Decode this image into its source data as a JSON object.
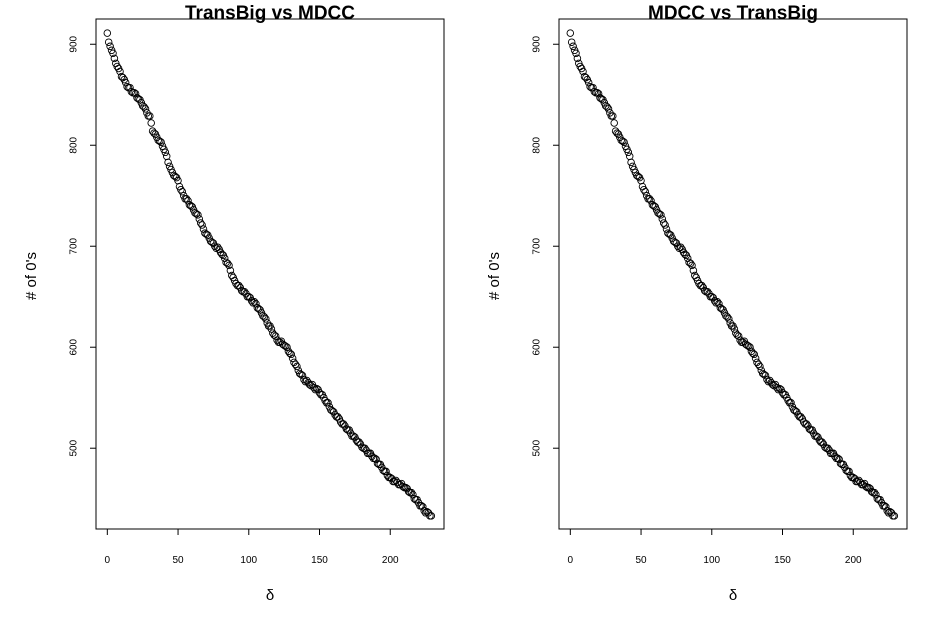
{
  "chart_data": [
    {
      "type": "scatter",
      "title": "TransBig vs MDCC",
      "xlabel": "δ",
      "ylabel": "# of 0's",
      "xlim": [
        -8,
        238
      ],
      "ylim": [
        420,
        925
      ],
      "xticks": [
        0,
        50,
        100,
        150,
        200
      ],
      "yticks": [
        500,
        600,
        700,
        800,
        900
      ],
      "grid": false,
      "marker": "open-circle",
      "anchors": [
        [
          0,
          911
        ],
        [
          1,
          901
        ],
        [
          3,
          895
        ],
        [
          5,
          885
        ],
        [
          8,
          875
        ],
        [
          12,
          864
        ],
        [
          15,
          857
        ],
        [
          20,
          850
        ],
        [
          25,
          840
        ],
        [
          30,
          828
        ],
        [
          32,
          815
        ],
        [
          35,
          808
        ],
        [
          40,
          797
        ],
        [
          45,
          775
        ],
        [
          50,
          765
        ],
        [
          52,
          755
        ],
        [
          55,
          748
        ],
        [
          60,
          738
        ],
        [
          65,
          728
        ],
        [
          68,
          716
        ],
        [
          75,
          702
        ],
        [
          80,
          695
        ],
        [
          85,
          683
        ],
        [
          90,
          665
        ],
        [
          95,
          657
        ],
        [
          100,
          650
        ],
        [
          105,
          642
        ],
        [
          110,
          632
        ],
        [
          115,
          620
        ],
        [
          120,
          607
        ],
        [
          125,
          603
        ],
        [
          130,
          592
        ],
        [
          135,
          577
        ],
        [
          140,
          567
        ],
        [
          150,
          556
        ],
        [
          160,
          535
        ],
        [
          170,
          518
        ],
        [
          180,
          502
        ],
        [
          190,
          488
        ],
        [
          200,
          470
        ],
        [
          210,
          462
        ],
        [
          215,
          455
        ],
        [
          220,
          446
        ],
        [
          225,
          437
        ],
        [
          229,
          433
        ]
      ]
    },
    {
      "type": "scatter",
      "title": "MDCC vs TransBig",
      "xlabel": "δ",
      "ylabel": "# of 0's",
      "xlim": [
        -8,
        238
      ],
      "ylim": [
        420,
        925
      ],
      "xticks": [
        0,
        50,
        100,
        150,
        200
      ],
      "yticks": [
        500,
        600,
        700,
        800,
        900
      ],
      "grid": false,
      "marker": "open-circle",
      "anchors": [
        [
          0,
          911
        ],
        [
          1,
          901
        ],
        [
          3,
          895
        ],
        [
          5,
          885
        ],
        [
          8,
          875
        ],
        [
          12,
          864
        ],
        [
          15,
          857
        ],
        [
          20,
          850
        ],
        [
          25,
          840
        ],
        [
          30,
          828
        ],
        [
          32,
          815
        ],
        [
          35,
          808
        ],
        [
          40,
          797
        ],
        [
          45,
          775
        ],
        [
          50,
          765
        ],
        [
          52,
          755
        ],
        [
          55,
          748
        ],
        [
          60,
          738
        ],
        [
          65,
          728
        ],
        [
          68,
          716
        ],
        [
          75,
          702
        ],
        [
          80,
          695
        ],
        [
          85,
          683
        ],
        [
          90,
          665
        ],
        [
          95,
          657
        ],
        [
          100,
          650
        ],
        [
          105,
          642
        ],
        [
          110,
          632
        ],
        [
          115,
          620
        ],
        [
          120,
          607
        ],
        [
          125,
          603
        ],
        [
          130,
          592
        ],
        [
          135,
          577
        ],
        [
          140,
          567
        ],
        [
          150,
          556
        ],
        [
          160,
          535
        ],
        [
          170,
          518
        ],
        [
          180,
          502
        ],
        [
          190,
          488
        ],
        [
          200,
          470
        ],
        [
          210,
          462
        ],
        [
          215,
          455
        ],
        [
          220,
          446
        ],
        [
          225,
          437
        ],
        [
          229,
          433
        ]
      ]
    }
  ]
}
